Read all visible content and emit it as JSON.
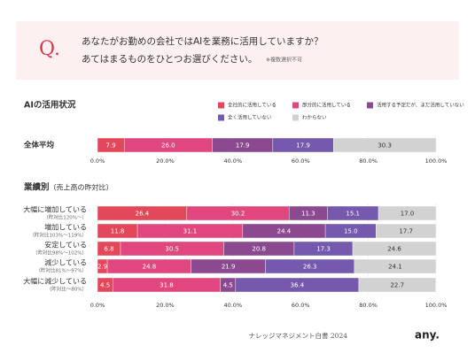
{
  "header": {
    "mark": "Q.",
    "question": "あなたがお勤めの会社ではAIを業務に活用していますか？",
    "instruction": "あてはまるものをひとつお選びください。",
    "note": "※複数選択不可"
  },
  "chart_data": [
    {
      "type": "bar",
      "orientation": "horizontal",
      "stacked": true,
      "title": "AIの活用状況",
      "legend": true,
      "grid": true,
      "categories": [
        "全体平均"
      ],
      "series": [
        {
          "name": "全社的に活用している",
          "color": "#e2475a",
          "values": [
            7.9
          ],
          "value_labels": [
            "7.9"
          ]
        },
        {
          "name": "部分的に活用している",
          "color": "#e0477f",
          "values": [
            26.0
          ],
          "value_labels": [
            "26.0"
          ]
        },
        {
          "name": "活用する予定だが、まだ活用していない",
          "color": "#8b4a90",
          "values": [
            17.9
          ],
          "value_labels": [
            "17.9"
          ]
        },
        {
          "name": "全く活用していない",
          "color": "#7559ad",
          "values": [
            17.9
          ],
          "value_labels": [
            "17.9"
          ]
        },
        {
          "name": "わからない",
          "color": "#d2d2d2",
          "values": [
            30.3
          ],
          "value_labels": [
            "30.3"
          ]
        }
      ],
      "xlim": [
        0,
        100
      ],
      "xticks": [
        {
          "value": 0,
          "label": "0.0%"
        },
        {
          "value": 20,
          "label": "20.0%"
        },
        {
          "value": 40,
          "label": "40.0%"
        },
        {
          "value": 60,
          "label": "60.0%"
        },
        {
          "value": 80,
          "label": "80.0%"
        },
        {
          "value": 100,
          "label": "100.0%"
        }
      ]
    },
    {
      "type": "bar",
      "orientation": "horizontal",
      "stacked": true,
      "title": "業績別",
      "subtitle": "（売上高の昨対比）",
      "legend": false,
      "grid": true,
      "categories": [
        "大幅に増加している",
        "増加している",
        "安定している",
        "減少している",
        "大幅に減少している"
      ],
      "category_notes": [
        "（昨対比120%～）",
        "（昨対比103%～119%）",
        "（昨対比98%～102%）",
        "（昨対比81%～97%）",
        "（昨対比～80%）"
      ],
      "series": [
        {
          "color": "#e2475a",
          "values": [
            26.4,
            11.8,
            6.8,
            2.9,
            4.5
          ],
          "value_labels": [
            "26.4",
            "11.8",
            "6.8",
            "2.9",
            "4.5"
          ]
        },
        {
          "color": "#e0477f",
          "values": [
            30.2,
            31.1,
            30.5,
            24.8,
            31.8
          ],
          "value_labels": [
            "30.2",
            "31.1",
            "30.5",
            "24.8",
            "31.8"
          ]
        },
        {
          "color": "#8b4a90",
          "values": [
            11.3,
            24.4,
            20.8,
            21.9,
            4.5
          ],
          "value_labels": [
            "11.3",
            "24.4",
            "20.8",
            "21.9",
            "4.5"
          ]
        },
        {
          "color": "#7559ad",
          "values": [
            15.1,
            15.0,
            17.3,
            26.3,
            36.4
          ],
          "value_labels": [
            "15.1",
            "15.0",
            "17.3",
            "26.3",
            "36.4"
          ]
        },
        {
          "color": "#d2d2d2",
          "values": [
            17.0,
            17.7,
            24.6,
            24.1,
            22.7
          ],
          "value_labels": [
            "17.0",
            "17.7",
            "24.6",
            "24.1",
            "22.7"
          ]
        }
      ],
      "xlim": [
        0,
        100
      ],
      "xticks": [
        {
          "value": 0,
          "label": "0.0%"
        },
        {
          "value": 20,
          "label": "20.0%"
        },
        {
          "value": 40,
          "label": "40.0%"
        },
        {
          "value": 60,
          "label": "60.0%"
        },
        {
          "value": 80,
          "label": "80.0%"
        },
        {
          "value": 100,
          "label": "100.0%"
        }
      ]
    }
  ],
  "footer": {
    "publication": "ナレッジマネジメント白書 2024",
    "logo": "any."
  }
}
